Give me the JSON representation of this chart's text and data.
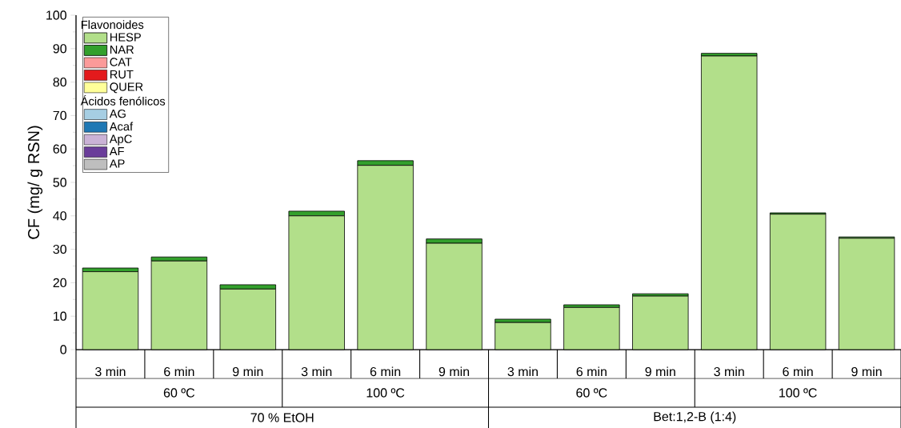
{
  "chart_data": {
    "type": "bar",
    "stacked": true,
    "ylabel": "CF (mg/ g RSN)",
    "legend_title": "Flavonoides",
    "legend": "top left",
    "categories": [
      "3 min",
      "6 min",
      "9 min",
      "3 min",
      "6 min",
      "9 min",
      "3 min",
      "6 min",
      "9 min",
      "3 min",
      "6 min",
      "9 min"
    ],
    "series": [
      {
        "name": "HESP",
        "color": "#b2df8a",
        "values": [
          23.3,
          26.5,
          18.1,
          40.0,
          55.1,
          31.8,
          8.1,
          12.6,
          16.0,
          87.8,
          40.5,
          33.3
        ]
      },
      {
        "name": "NAR",
        "color": "#33a02c",
        "values": [
          1.1,
          1.2,
          1.3,
          1.4,
          1.4,
          1.3,
          1.0,
          0.8,
          0.7,
          0.8,
          0.4,
          0.4
        ]
      },
      {
        "name": "CAT",
        "color": "#fb9a99",
        "values": [
          null,
          null,
          null,
          null,
          null,
          null,
          null,
          null,
          null,
          null,
          null,
          null
        ]
      },
      {
        "name": "RUT",
        "color": "#e31a1c",
        "values": [
          null,
          null,
          null,
          null,
          null,
          null,
          null,
          null,
          null,
          null,
          null,
          null
        ]
      },
      {
        "name": "QUER",
        "color": "#ffff99",
        "values": [
          null,
          null,
          null,
          null,
          null,
          null,
          null,
          null,
          null,
          null,
          null,
          null
        ]
      },
      {
        "name": "AG",
        "color": "#a6cee3",
        "values": [
          null,
          null,
          null,
          null,
          null,
          null,
          null,
          null,
          null,
          null,
          null,
          null
        ]
      },
      {
        "name": "Acaf",
        "color": "#1f78b4",
        "values": [
          null,
          null,
          null,
          null,
          null,
          null,
          null,
          null,
          null,
          null,
          null,
          null
        ]
      },
      {
        "name": "ApC",
        "color": "#cab2d6",
        "values": [
          null,
          null,
          null,
          null,
          null,
          null,
          null,
          null,
          null,
          null,
          null,
          null
        ]
      },
      {
        "name": "AF",
        "color": "#6a3d9a",
        "values": [
          null,
          null,
          null,
          null,
          null,
          null,
          null,
          null,
          null,
          null,
          null,
          null
        ]
      },
      {
        "name": "AP",
        "color": "#bebebe",
        "values": [
          null,
          null,
          null,
          null,
          null,
          null,
          null,
          null,
          null,
          null,
          null,
          null
        ]
      }
    ],
    "ylim": [
      0,
      100
    ],
    "yticks": [
      0,
      10,
      20,
      30,
      40,
      50,
      60,
      70,
      80,
      90,
      100
    ],
    "annotations": [
      "60 ºC",
      "100 ºC",
      "60 ºC",
      "100 ºC",
      "70 % EtOH",
      "Bet:1,2-B (1:4)",
      "Ácidos fenólicos"
    ]
  }
}
